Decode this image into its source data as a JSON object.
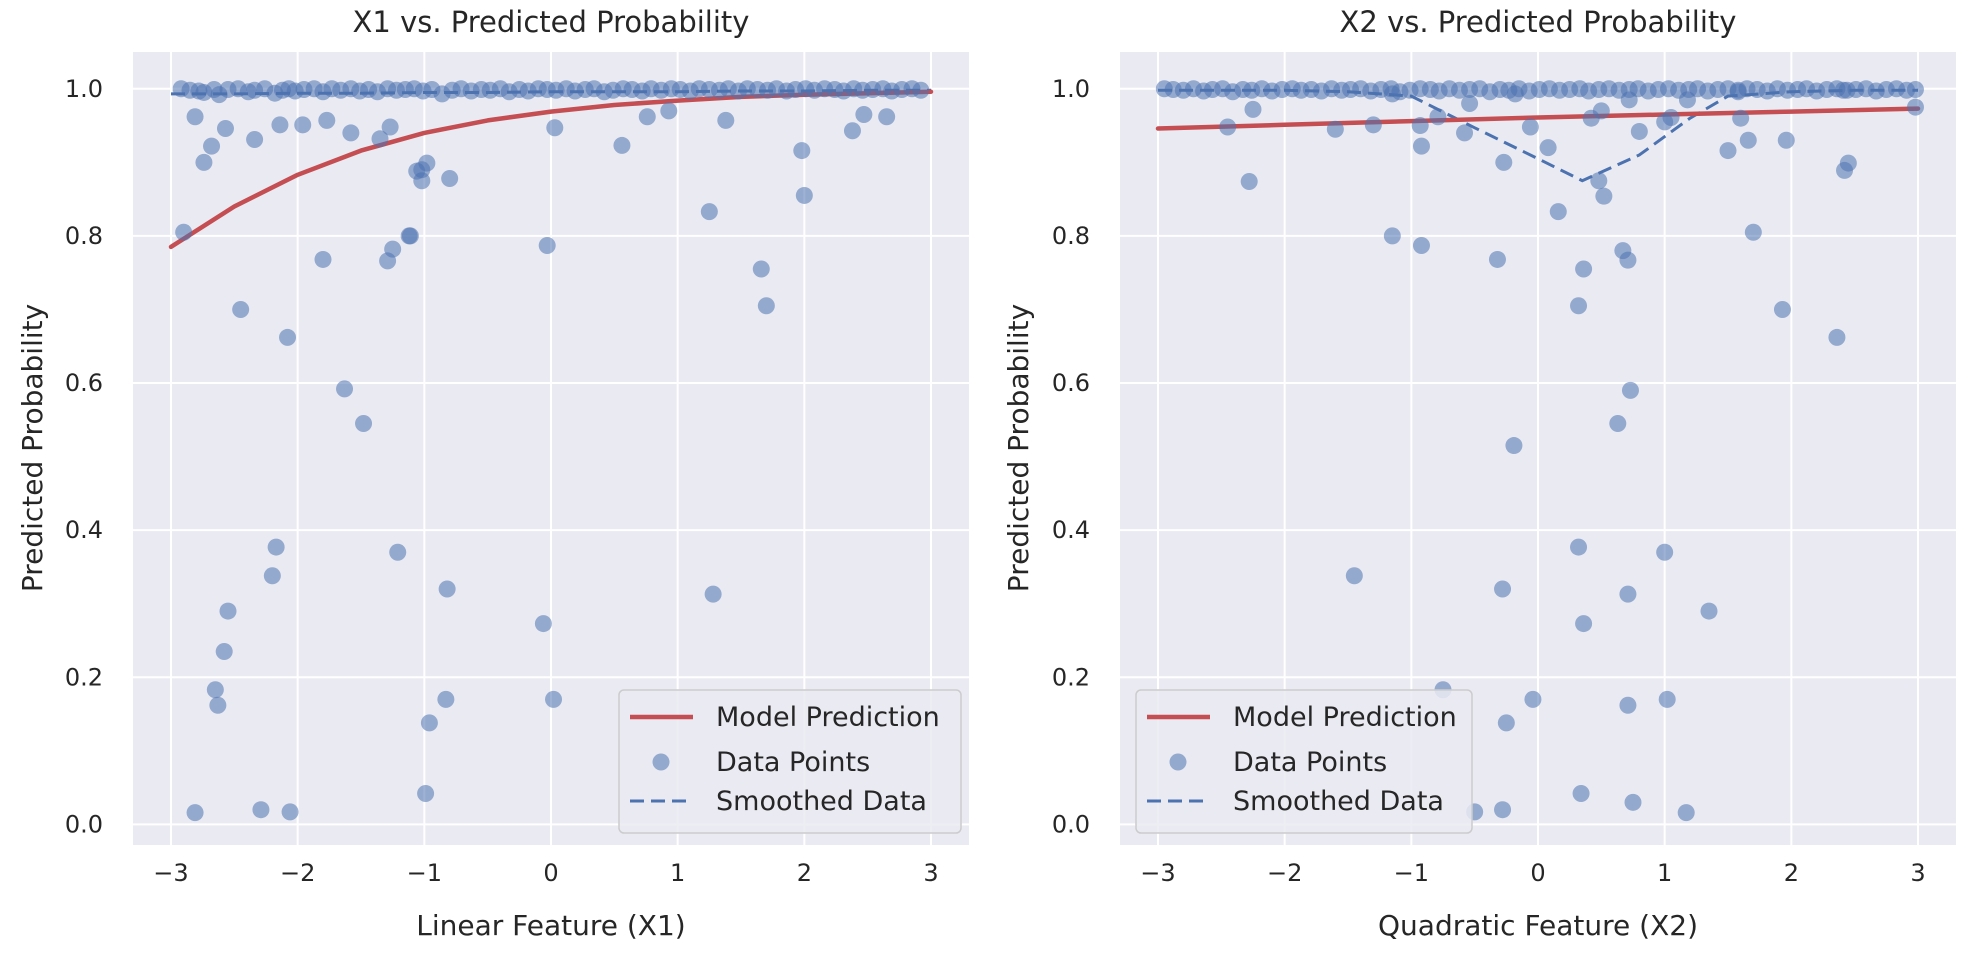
{
  "colors": {
    "model": "#c44e52",
    "points": "#4c72b0",
    "smooth": "#4c72b0"
  },
  "chart_data": [
    {
      "type": "scatter",
      "title": "X1 vs. Predicted Probability",
      "xlabel": "Linear Feature (X1)",
      "ylabel": "Predicted Probability",
      "xlim": [
        -3.3,
        3.3
      ],
      "ylim": [
        -0.028,
        1.05
      ],
      "xticks": [
        -3,
        -2,
        -1,
        0,
        1,
        2,
        3
      ],
      "xtick_labels": [
        "−3",
        "−2",
        "−1",
        "0",
        "1",
        "2",
        "3"
      ],
      "yticks": [
        0.0,
        0.2,
        0.4,
        0.6,
        0.8,
        1.0
      ],
      "ytick_labels": [
        "0.0",
        "0.2",
        "0.4",
        "0.6",
        "0.8",
        "1.0"
      ],
      "grid": true,
      "legend_position": "lower-right",
      "legend": [
        "Model Prediction",
        "Data Points",
        "Smoothed Data"
      ],
      "model_prediction": {
        "x": [
          -3.0,
          -2.5,
          -2.0,
          -1.5,
          -1.0,
          -0.5,
          0.0,
          0.5,
          1.0,
          1.5,
          2.0,
          2.5,
          3.0
        ],
        "y": [
          0.785,
          0.84,
          0.883,
          0.916,
          0.94,
          0.957,
          0.969,
          0.978,
          0.984,
          0.989,
          0.992,
          0.994,
          0.996
        ]
      },
      "smoothed_data": {
        "x": [
          -3.0,
          -2.5,
          -2.0,
          -1.5,
          -1.0,
          -0.5,
          0.0,
          0.5,
          1.0,
          1.5,
          2.0,
          2.5,
          3.0
        ],
        "y": [
          0.993,
          0.993,
          0.994,
          0.994,
          0.995,
          0.995,
          0.996,
          0.996,
          0.996,
          0.997,
          0.997,
          0.998,
          0.998
        ]
      },
      "data_points": {
        "x": [
          -2.92,
          -2.85,
          -2.78,
          -2.74,
          -2.66,
          -2.62,
          -2.55,
          -2.47,
          -2.39,
          -2.34,
          -2.26,
          -2.18,
          -2.12,
          -2.07,
          -2.02,
          -1.95,
          -1.87,
          -1.8,
          -1.73,
          -1.66,
          -1.58,
          -1.51,
          -1.44,
          -1.37,
          -1.29,
          -1.22,
          -1.15,
          -1.08,
          -1.01,
          -0.94,
          -0.86,
          -0.78,
          -0.71,
          -0.63,
          -0.55,
          -0.48,
          -0.4,
          -0.33,
          -0.25,
          -0.18,
          -0.1,
          -0.03,
          0.04,
          0.12,
          0.19,
          0.27,
          0.34,
          0.42,
          0.49,
          0.57,
          0.64,
          0.72,
          0.79,
          0.87,
          0.95,
          1.02,
          1.1,
          1.17,
          1.25,
          1.33,
          1.4,
          1.48,
          1.55,
          1.63,
          1.71,
          1.78,
          1.86,
          1.93,
          2.01,
          2.08,
          2.16,
          2.24,
          2.31,
          2.39,
          2.46,
          2.54,
          2.62,
          2.69,
          2.77,
          2.85,
          2.92,
          -2.9,
          -2.81,
          -2.74,
          -2.68,
          -2.57,
          -2.34,
          -2.14,
          -1.96,
          -1.77,
          -1.58,
          -1.35,
          -1.27,
          -1.11,
          -1.02,
          -0.98,
          -1.06,
          -0.8,
          0.03,
          1.38,
          1.98,
          2.38,
          2.47,
          2.65,
          -2.45,
          -2.08,
          -1.8,
          -1.63,
          -1.48,
          -1.29,
          -1.25,
          -1.12,
          -1.02,
          -0.82,
          -0.03,
          0.56,
          0.76,
          0.93,
          1.25,
          1.66,
          1.7,
          2.0,
          -2.55,
          -2.58,
          -2.65,
          -2.63,
          -2.81,
          -2.29,
          -2.06,
          -2.17,
          -2.2,
          -1.21,
          -0.83,
          -0.96,
          -0.99,
          -0.06,
          0.02,
          1.28
        ],
        "y": [
          1.0,
          0.998,
          0.997,
          0.995,
          0.999,
          0.992,
          0.999,
          1.0,
          0.996,
          0.998,
          1.0,
          0.994,
          0.998,
          1.0,
          0.997,
          0.999,
          1.0,
          0.996,
          1.0,
          0.998,
          1.0,
          0.997,
          0.999,
          0.996,
          1.0,
          0.998,
          0.999,
          1.0,
          0.997,
          0.999,
          0.993,
          0.998,
          1.0,
          0.997,
          0.999,
          0.998,
          1.0,
          0.996,
          0.999,
          0.997,
          1.0,
          0.999,
          0.998,
          1.0,
          0.997,
          0.999,
          1.0,
          0.996,
          0.998,
          1.0,
          0.999,
          0.997,
          1.0,
          0.998,
          1.0,
          0.999,
          0.997,
          1.0,
          0.999,
          0.998,
          1.0,
          0.997,
          1.0,
          0.999,
          0.998,
          1.0,
          0.997,
          0.999,
          1.0,
          0.998,
          1.0,
          0.999,
          0.997,
          1.0,
          0.998,
          0.999,
          1.0,
          0.997,
          0.999,
          1.0,
          0.998,
          0.805,
          0.962,
          0.9,
          0.922,
          0.946,
          0.931,
          0.951,
          0.951,
          0.957,
          0.94,
          0.932,
          0.948,
          0.8,
          0.875,
          0.899,
          0.888,
          0.878,
          0.947,
          0.957,
          0.916,
          0.943,
          0.965,
          0.962,
          0.7,
          0.662,
          0.768,
          0.592,
          0.545,
          0.766,
          0.782,
          0.8,
          0.89,
          0.32,
          0.787,
          0.923,
          0.962,
          0.97,
          0.833,
          0.755,
          0.705,
          0.855,
          0.29,
          0.235,
          0.183,
          0.162,
          0.016,
          0.02,
          0.017,
          0.377,
          0.338,
          0.37,
          0.17,
          0.138,
          0.042,
          0.273,
          0.17,
          0.313
        ]
      }
    },
    {
      "type": "scatter",
      "title": "X2 vs. Predicted Probability",
      "xlabel": "Quadratic Feature (X2)",
      "ylabel": "Predicted Probability",
      "xlim": [
        -3.3,
        3.3
      ],
      "ylim": [
        -0.028,
        1.05
      ],
      "xticks": [
        -3,
        -2,
        -1,
        0,
        1,
        2,
        3
      ],
      "xtick_labels": [
        "−3",
        "−2",
        "−1",
        "0",
        "1",
        "2",
        "3"
      ],
      "yticks": [
        0.0,
        0.2,
        0.4,
        0.6,
        0.8,
        1.0
      ],
      "ytick_labels": [
        "0.0",
        "0.2",
        "0.4",
        "0.6",
        "0.8",
        "1.0"
      ],
      "grid": true,
      "legend_position": "lower-left",
      "legend": [
        "Model Prediction",
        "Data Points",
        "Smoothed Data"
      ],
      "model_prediction": {
        "x": [
          -3.0,
          -2.0,
          -1.0,
          0.0,
          1.0,
          2.0,
          3.0
        ],
        "y": [
          0.946,
          0.951,
          0.956,
          0.961,
          0.965,
          0.969,
          0.973
        ]
      },
      "smoothed_data": {
        "x": [
          -3.0,
          -2.0,
          -1.5,
          -1.0,
          -0.5,
          0.0,
          0.35,
          0.8,
          1.2,
          1.5,
          2.0,
          2.5,
          3.0
        ],
        "y": [
          0.998,
          0.998,
          0.996,
          0.99,
          0.947,
          0.905,
          0.875,
          0.91,
          0.96,
          0.99,
          0.996,
          0.998,
          0.998
        ]
      },
      "data_points": {
        "x": [
          -2.95,
          -2.88,
          -2.8,
          -2.72,
          -2.64,
          -2.57,
          -2.49,
          -2.41,
          -2.33,
          -2.26,
          -2.18,
          -2.1,
          -2.02,
          -1.94,
          -1.87,
          -1.79,
          -1.71,
          -1.63,
          -1.55,
          -1.48,
          -1.4,
          -1.32,
          -1.24,
          -1.16,
          -1.09,
          -1.01,
          -0.93,
          -0.85,
          -0.78,
          -0.7,
          -0.62,
          -0.54,
          -0.46,
          -0.38,
          -0.3,
          -0.23,
          -0.15,
          -0.07,
          0.01,
          0.09,
          0.17,
          0.25,
          0.33,
          0.4,
          0.48,
          0.56,
          0.64,
          0.72,
          0.79,
          0.87,
          0.95,
          1.03,
          1.11,
          1.19,
          1.26,
          1.34,
          1.42,
          1.5,
          1.58,
          1.65,
          1.73,
          1.81,
          1.89,
          1.97,
          2.05,
          2.12,
          2.2,
          2.28,
          2.36,
          2.44,
          2.51,
          2.59,
          2.67,
          2.75,
          2.83,
          2.91,
          2.98,
          -2.45,
          -2.28,
          -2.25,
          -1.6,
          -1.3,
          -1.15,
          -0.92,
          -0.79,
          -0.58,
          -0.27,
          -0.18,
          0.08,
          0.42,
          0.48,
          0.52,
          0.72,
          0.8,
          1.05,
          1.18,
          1.5,
          1.6,
          1.66,
          1.96,
          2.42,
          2.45,
          2.98,
          0.5,
          -0.06,
          -0.32,
          0.16,
          -1.15,
          -0.92,
          0.32,
          0.36,
          0.67,
          0.71,
          -0.19,
          0.63,
          0.73,
          1.0,
          1.7,
          1.93,
          2.36,
          -1.45,
          -0.28,
          0.32,
          0.36,
          0.71,
          1.0,
          1.35,
          -0.75,
          -0.25,
          0.71,
          1.02,
          -0.04,
          0.75,
          -0.5,
          -0.28,
          0.34,
          1.17,
          -0.93,
          -0.54,
          1.58,
          2.41
        ],
        "y": [
          1.0,
          0.999,
          0.998,
          1.0,
          0.997,
          0.999,
          1.0,
          0.996,
          0.999,
          0.998,
          1.0,
          0.997,
          0.999,
          1.0,
          0.998,
          0.999,
          0.997,
          1.0,
          0.998,
          0.999,
          1.0,
          0.997,
          0.999,
          1.0,
          0.996,
          0.998,
          1.0,
          0.999,
          0.997,
          1.0,
          0.998,
          0.999,
          1.0,
          0.996,
          0.999,
          0.998,
          1.0,
          0.997,
          0.999,
          1.0,
          0.998,
          0.999,
          1.0,
          0.997,
          0.999,
          1.0,
          0.998,
          0.999,
          1.0,
          0.997,
          0.999,
          1.0,
          0.998,
          0.999,
          1.0,
          0.997,
          0.999,
          1.0,
          0.998,
          1.0,
          0.999,
          0.997,
          1.0,
          0.998,
          0.999,
          1.0,
          0.997,
          0.999,
          1.0,
          0.998,
          0.999,
          1.0,
          0.997,
          0.999,
          1.0,
          0.998,
          0.999,
          0.948,
          0.874,
          0.972,
          0.945,
          0.951,
          0.993,
          0.922,
          0.962,
          0.94,
          0.9,
          0.993,
          0.92,
          0.96,
          0.875,
          0.854,
          0.985,
          0.942,
          0.961,
          0.985,
          0.916,
          0.96,
          0.93,
          0.93,
          0.889,
          0.899,
          0.975,
          0.97,
          0.948,
          0.768,
          0.833,
          0.8,
          0.787,
          0.705,
          0.755,
          0.78,
          0.767,
          0.515,
          0.545,
          0.59,
          0.955,
          0.805,
          0.7,
          0.662,
          0.338,
          0.32,
          0.377,
          0.273,
          0.313,
          0.37,
          0.29,
          0.183,
          0.138,
          0.162,
          0.17,
          0.17,
          0.03,
          0.017,
          0.02,
          0.042,
          0.016,
          0.95,
          0.98,
          0.996,
          0.998
        ]
      }
    }
  ]
}
